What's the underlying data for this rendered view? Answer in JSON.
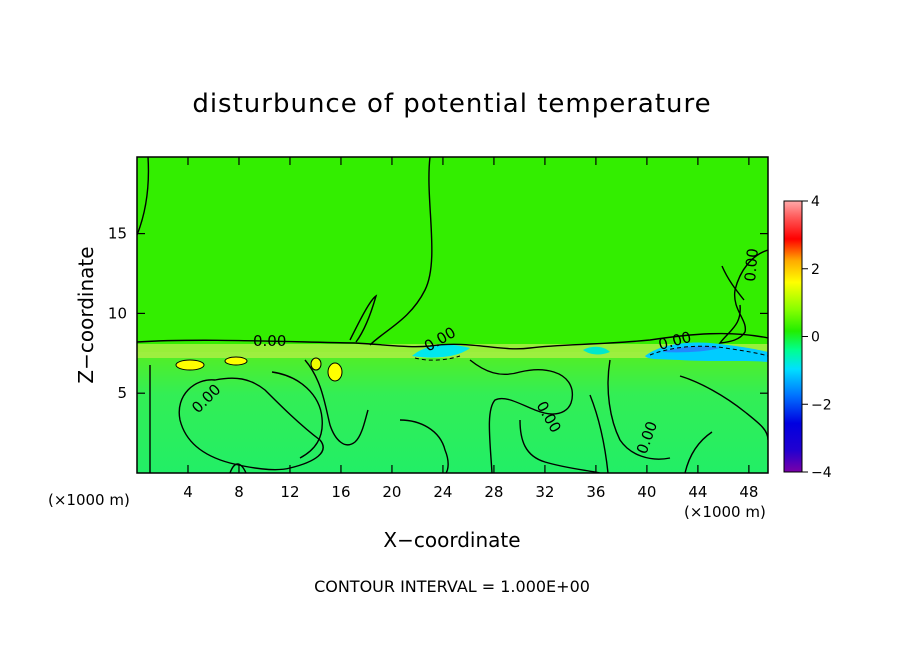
{
  "chart_data": {
    "type": "heatmap",
    "title": "disturbunce of potential temperature",
    "xlabel": "X−coordinate",
    "ylabel": "Z−coordinate",
    "x_unit": "(×1000 m)",
    "x_ticks": [
      4,
      8,
      12,
      16,
      20,
      24,
      28,
      32,
      36,
      40,
      44,
      48
    ],
    "y_ticks": [
      5,
      10,
      15
    ],
    "xlim": [
      0,
      49.5
    ],
    "ylim": [
      0,
      19.8
    ],
    "colorbar": {
      "ticks": [
        4,
        2,
        0,
        -2,
        -4
      ],
      "range": [
        -4,
        4
      ],
      "colors": [
        "#7a00a8",
        "#0000e0",
        "#0070ff",
        "#00e0ff",
        "#00ff80",
        "#22ee00",
        "#66ff00",
        "#ffff00",
        "#ff9900",
        "#ff0000",
        "#ff9999"
      ]
    },
    "contour_labels": [
      "0.00",
      "0.00",
      "0.00",
      "0.00",
      "0.00",
      "0.00",
      "0.00"
    ],
    "contour_interval_text": "CONTOUR INTERVAL = 1.000E+00"
  }
}
